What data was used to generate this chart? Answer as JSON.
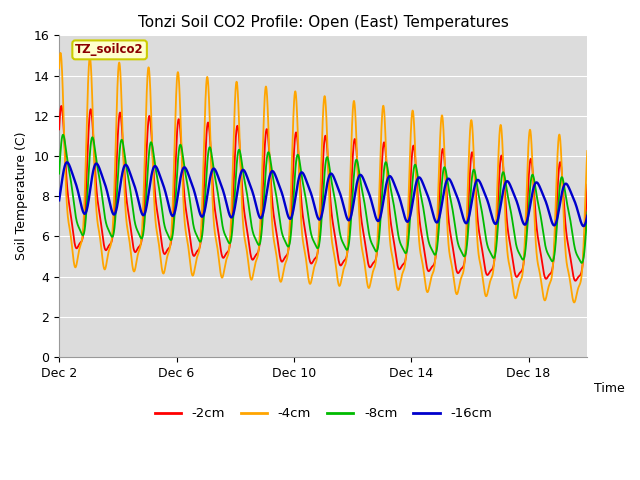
{
  "title": "Tonzi Soil CO2 Profile: Open (East) Temperatures",
  "xlabel": "Time",
  "ylabel": "Soil Temperature (C)",
  "xlim_days": [
    0,
    18
  ],
  "ylim": [
    0,
    16
  ],
  "yticks": [
    0,
    2,
    4,
    6,
    8,
    10,
    12,
    14,
    16
  ],
  "xtick_positions": [
    0,
    4,
    8,
    12,
    16
  ],
  "xtick_labels": [
    "Dec 2",
    "Dec 6",
    "Dec 10",
    "Dec 14",
    "Dec 18"
  ],
  "plot_bg_color": "#dcdcdc",
  "lines": [
    {
      "label": "-2cm",
      "color": "#ff0000"
    },
    {
      "label": "-4cm",
      "color": "#ffa500"
    },
    {
      "label": "-8cm",
      "color": "#00bb00"
    },
    {
      "label": "-16cm",
      "color": "#0000cc"
    }
  ],
  "annotation_text": "TZ_soilco2",
  "annotation_color": "#8b0000",
  "annotation_bg": "#ffffcc",
  "annotation_border": "#cccc00",
  "legend_colors": [
    "#ff0000",
    "#ffa500",
    "#00bb00",
    "#0000cc"
  ],
  "legend_labels": [
    "-2cm",
    "-4cm",
    "-8cm",
    "-16cm"
  ]
}
